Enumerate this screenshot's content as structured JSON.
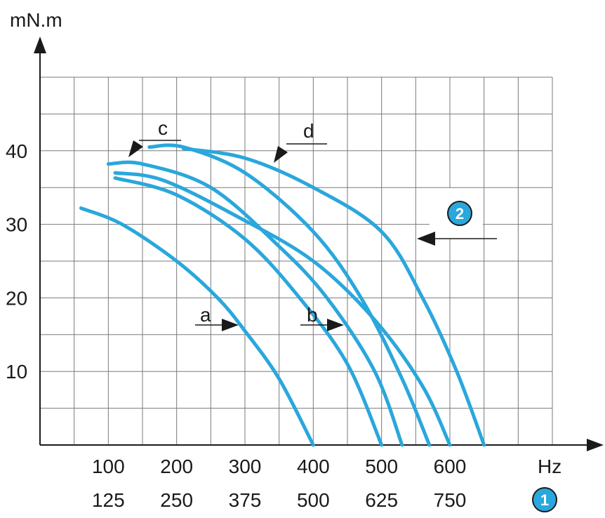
{
  "chart_data": {
    "type": "line",
    "ylabel": "mN.m",
    "xlabel": "Hz",
    "x_ticks_row1": [
      "100",
      "200",
      "300",
      "400",
      "500",
      "600"
    ],
    "x_ticks_row1_values": [
      100,
      200,
      300,
      400,
      500,
      600
    ],
    "x_ticks_row2": [
      "125",
      "250",
      "375",
      "500",
      "625",
      "750"
    ],
    "y_ticks": [
      "10",
      "20",
      "30",
      "40"
    ],
    "y_tick_values": [
      10,
      20,
      30,
      40
    ],
    "xlim": [
      0,
      750
    ],
    "ylim": [
      0,
      50
    ],
    "grid": true,
    "curve_color": "#2aa7dc",
    "annotations": {
      "a": "a",
      "b": "b",
      "c": "c",
      "d": "d",
      "badge1": "1",
      "badge2": "2"
    },
    "series": [
      {
        "label": "a",
        "points": [
          [
            60,
            32.2
          ],
          [
            120,
            30
          ],
          [
            200,
            25
          ],
          [
            260,
            20
          ],
          [
            300,
            15.5
          ],
          [
            350,
            9
          ],
          [
            400,
            0
          ]
        ]
      },
      {
        "label": "b",
        "points": [
          [
            110,
            36.3
          ],
          [
            200,
            34
          ],
          [
            300,
            28
          ],
          [
            380,
            20
          ],
          [
            450,
            11
          ],
          [
            500,
            0
          ]
        ]
      },
      {
        "label": "c",
        "points": [
          [
            100,
            38.2
          ],
          [
            150,
            38.2
          ],
          [
            250,
            35
          ],
          [
            350,
            27
          ],
          [
            420,
            20
          ],
          [
            490,
            10
          ],
          [
            530,
            0
          ]
        ]
      },
      {
        "label": "",
        "points": [
          [
            160,
            40.5
          ],
          [
            210,
            40.5
          ],
          [
            300,
            37
          ],
          [
            400,
            29
          ],
          [
            470,
            20
          ],
          [
            530,
            9
          ],
          [
            570,
            0
          ]
        ]
      },
      {
        "label": "",
        "points": [
          [
            110,
            37
          ],
          [
            180,
            36
          ],
          [
            290,
            31
          ],
          [
            400,
            25
          ],
          [
            490,
            17
          ],
          [
            560,
            8
          ],
          [
            600,
            0
          ]
        ]
      },
      {
        "label": "d",
        "points": [
          [
            210,
            40.3
          ],
          [
            300,
            39
          ],
          [
            400,
            35
          ],
          [
            500,
            29
          ],
          [
            560,
            20
          ],
          [
            610,
            10
          ],
          [
            650,
            0
          ]
        ]
      }
    ]
  }
}
